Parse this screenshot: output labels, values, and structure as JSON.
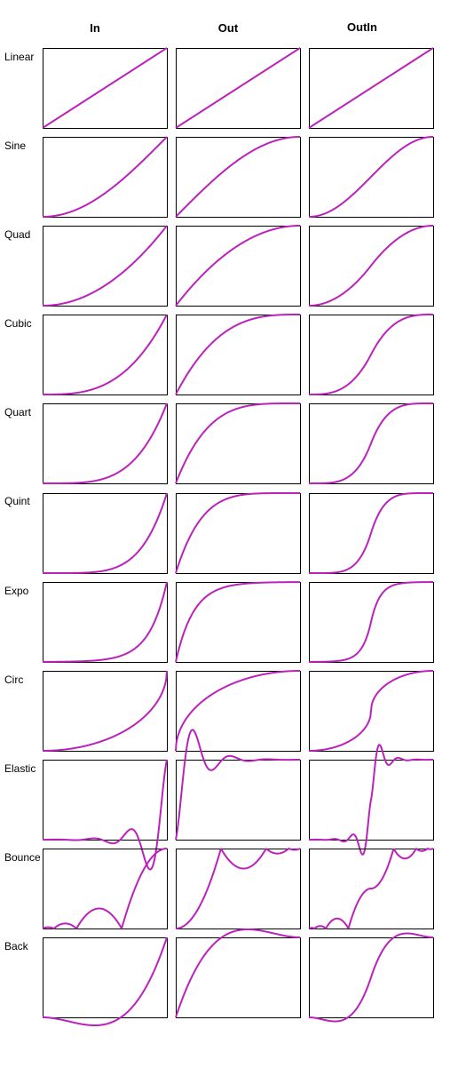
{
  "columns": [
    "In",
    "Out",
    "OutIn"
  ],
  "rows": [
    "Linear",
    "Sine",
    "Quad",
    "Cubic",
    "Quart",
    "Quint",
    "Expo",
    "Circ",
    "Elastic",
    "Bounce",
    "Back"
  ],
  "colors": {
    "curve": "#bb22bb",
    "frame": "#000000",
    "background": "#ffffff"
  }
}
